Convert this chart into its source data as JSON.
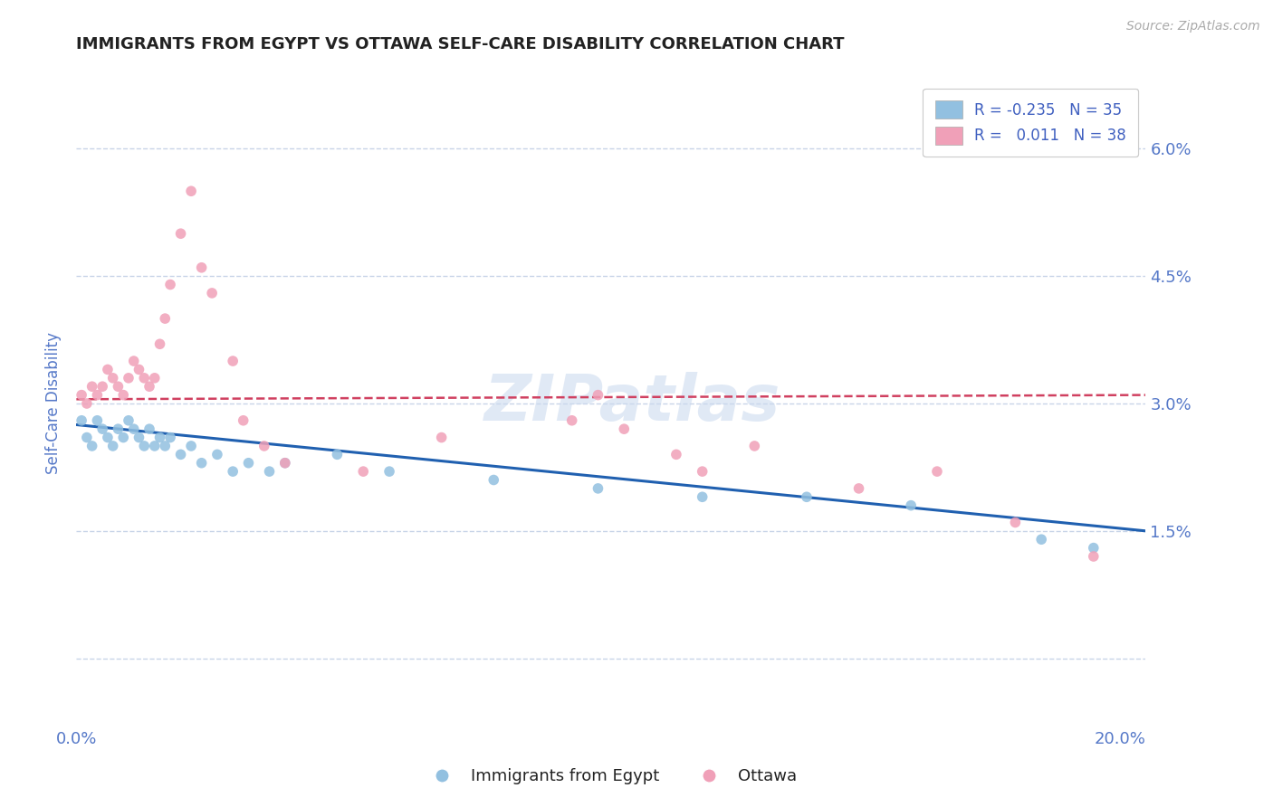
{
  "title": "IMMIGRANTS FROM EGYPT VS OTTAWA SELF-CARE DISABILITY CORRELATION CHART",
  "source": "Source: ZipAtlas.com",
  "ylabel": "Self-Care Disability",
  "yticks": [
    0.0,
    0.015,
    0.03,
    0.045,
    0.06
  ],
  "ytick_labels": [
    "",
    "1.5%",
    "3.0%",
    "4.5%",
    "6.0%"
  ],
  "xlim": [
    0.0,
    0.205
  ],
  "ylim": [
    -0.008,
    0.068
  ],
  "color_blue": "#92c0e0",
  "color_pink": "#f0a0b8",
  "color_blue_line": "#2060b0",
  "color_pink_line": "#d04060",
  "watermark_color": "#c8d8ee",
  "grid_color": "#c8d4e8",
  "background_color": "#ffffff",
  "title_color": "#222222",
  "tick_color": "#5578c8",
  "legend_label_color": "#4060c0",
  "blue_scatter_x": [
    0.001,
    0.002,
    0.003,
    0.004,
    0.005,
    0.006,
    0.007,
    0.008,
    0.009,
    0.01,
    0.011,
    0.012,
    0.013,
    0.014,
    0.015,
    0.016,
    0.017,
    0.018,
    0.02,
    0.022,
    0.024,
    0.027,
    0.03,
    0.033,
    0.037,
    0.04,
    0.05,
    0.06,
    0.08,
    0.1,
    0.12,
    0.14,
    0.16,
    0.185,
    0.195
  ],
  "blue_scatter_y": [
    0.028,
    0.026,
    0.025,
    0.028,
    0.027,
    0.026,
    0.025,
    0.027,
    0.026,
    0.028,
    0.027,
    0.026,
    0.025,
    0.027,
    0.025,
    0.026,
    0.025,
    0.026,
    0.024,
    0.025,
    0.023,
    0.024,
    0.022,
    0.023,
    0.022,
    0.023,
    0.024,
    0.022,
    0.021,
    0.02,
    0.019,
    0.019,
    0.018,
    0.014,
    0.013
  ],
  "pink_scatter_x": [
    0.001,
    0.002,
    0.003,
    0.004,
    0.005,
    0.006,
    0.007,
    0.008,
    0.009,
    0.01,
    0.011,
    0.012,
    0.013,
    0.014,
    0.015,
    0.016,
    0.017,
    0.018,
    0.02,
    0.022,
    0.024,
    0.026,
    0.03,
    0.032,
    0.036,
    0.04,
    0.055,
    0.07,
    0.095,
    0.115,
    0.13,
    0.15,
    0.165,
    0.18,
    0.195,
    0.1,
    0.105,
    0.12
  ],
  "pink_scatter_y": [
    0.031,
    0.03,
    0.032,
    0.031,
    0.032,
    0.034,
    0.033,
    0.032,
    0.031,
    0.033,
    0.035,
    0.034,
    0.033,
    0.032,
    0.033,
    0.037,
    0.04,
    0.044,
    0.05,
    0.055,
    0.046,
    0.043,
    0.035,
    0.028,
    0.025,
    0.023,
    0.022,
    0.026,
    0.028,
    0.024,
    0.025,
    0.02,
    0.022,
    0.016,
    0.012,
    0.031,
    0.027,
    0.022
  ],
  "blue_line_x": [
    0.0,
    0.205
  ],
  "blue_line_y": [
    0.0275,
    0.015
  ],
  "pink_line_x": [
    0.0,
    0.205
  ],
  "pink_line_y": [
    0.0305,
    0.031
  ]
}
